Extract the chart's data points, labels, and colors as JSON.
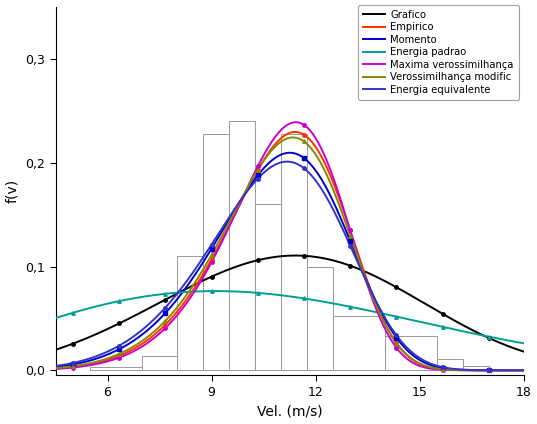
{
  "title": "",
  "xlabel": "Vel. (m/s)",
  "ylabel": "f(v)",
  "xlim": [
    4.5,
    18.0
  ],
  "ylim": [
    -0.005,
    0.35
  ],
  "xticks": [
    6,
    9,
    12,
    15,
    18
  ],
  "yticks": [
    0.0,
    0.1,
    0.2,
    0.3
  ],
  "hist_bins": [
    5.5,
    7.0,
    8.0,
    8.75,
    9.5,
    10.25,
    11.0,
    11.75,
    12.5,
    14.0,
    15.5,
    16.25,
    17.0
  ],
  "hist_heights": [
    0.003,
    0.014,
    0.11,
    0.228,
    0.24,
    0.16,
    0.228,
    0.1,
    0.052,
    0.033,
    0.011,
    0.004
  ],
  "curves": [
    {
      "label": "Grafico",
      "color": "#000000",
      "marker": "o",
      "k": 3.6,
      "c": 12.5
    },
    {
      "label": "Empirico",
      "color": "#FF3300",
      "marker": "o",
      "k": 7.2,
      "c": 11.65
    },
    {
      "label": "Momento",
      "color": "#0000CC",
      "marker": "s",
      "k": 6.5,
      "c": 11.55
    },
    {
      "label": "Energia padrao",
      "color": "#00A090",
      "marker": "^",
      "k": 2.2,
      "c": 12.0
    },
    {
      "label": "Maxima verossimilhança",
      "color": "#CC00CC",
      "marker": "o",
      "k": 7.5,
      "c": 11.65
    },
    {
      "label": "Verossimilhança modific",
      "color": "#888800",
      "marker": "^",
      "k": 7.0,
      "c": 11.6
    },
    {
      "label": "Energia equivalente",
      "color": "#3333CC",
      "marker": "o",
      "k": 6.2,
      "c": 11.5
    }
  ],
  "legend_loc": "upper right",
  "figsize": [
    5.37,
    4.24
  ],
  "dpi": 100
}
